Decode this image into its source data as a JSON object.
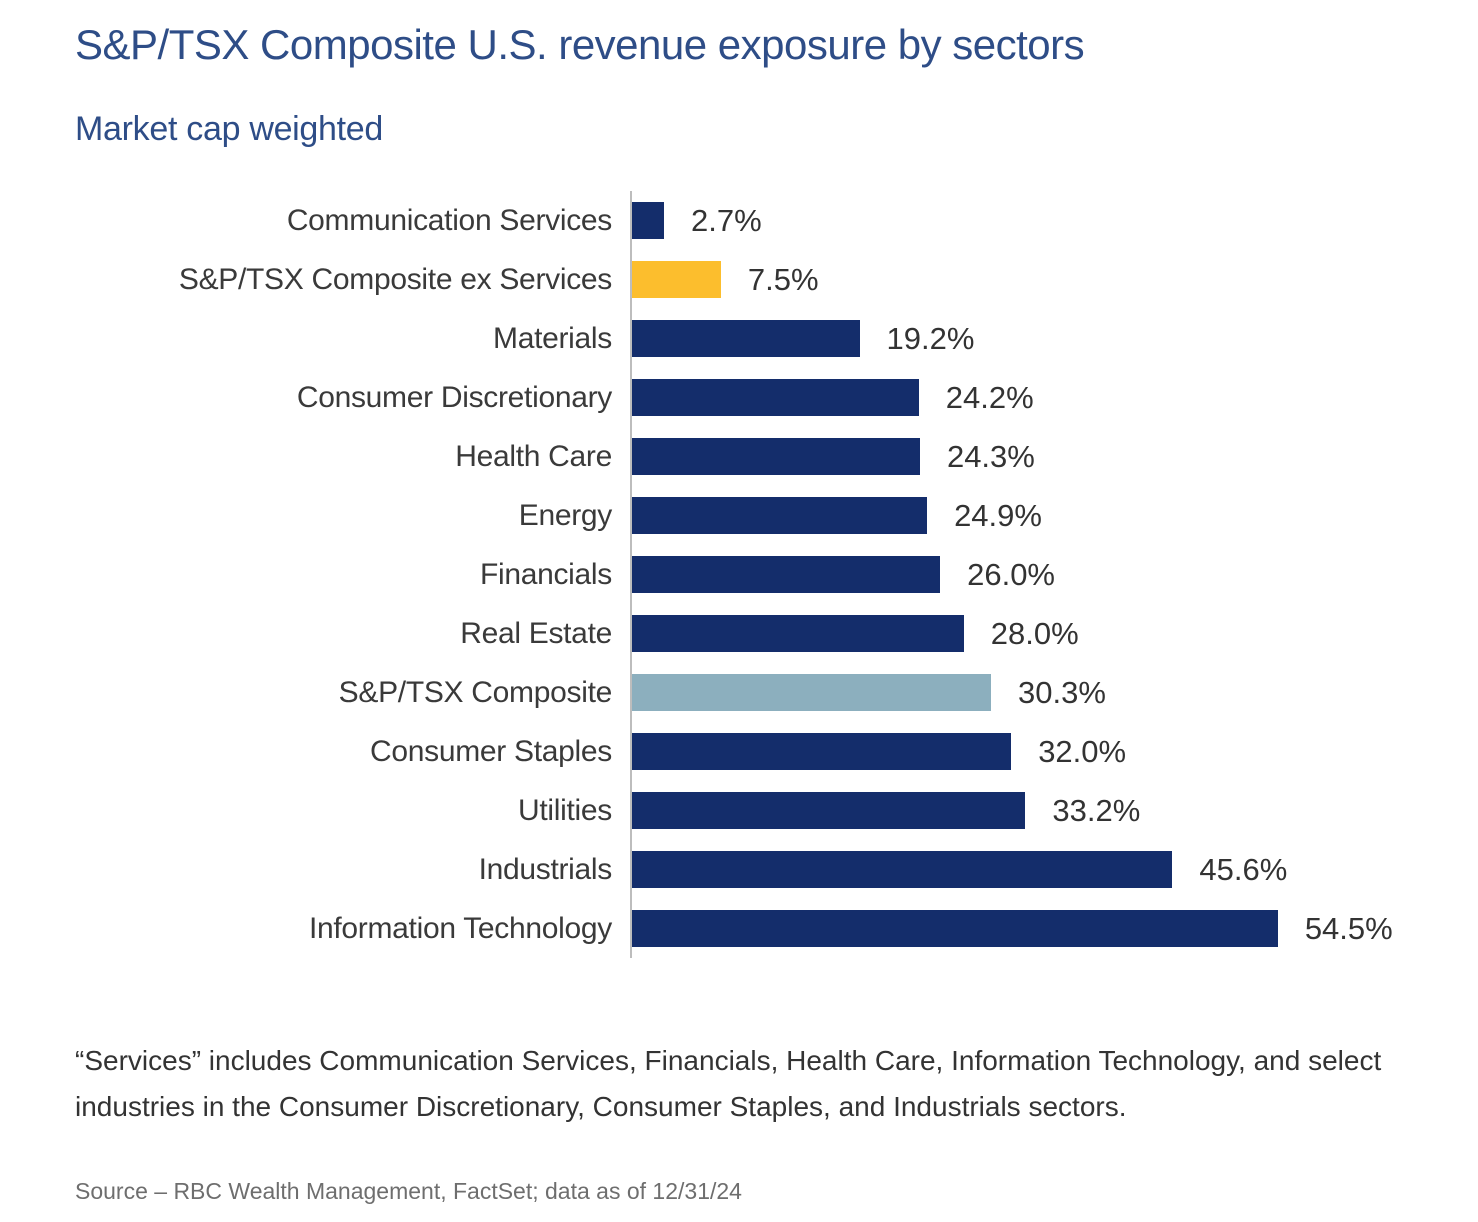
{
  "header": {
    "title": "S&P/TSX Composite U.S. revenue exposure by sectors",
    "subtitle": "Market cap weighted"
  },
  "chart_data": {
    "type": "bar",
    "orientation": "horizontal",
    "title": "S&P/TSX Composite U.S. revenue exposure by sectors",
    "subtitle": "Market cap weighted",
    "categories": [
      "Communication Services",
      "S&P/TSX Composite ex Services",
      "Materials",
      "Consumer Discretionary",
      "Health Care",
      "Energy",
      "Financials",
      "Real Estate",
      "S&P/TSX Composite",
      "Consumer Staples",
      "Utilities",
      "Industrials",
      "Information Technology"
    ],
    "values": [
      2.7,
      7.5,
      19.2,
      24.2,
      24.3,
      24.9,
      26.0,
      28.0,
      30.3,
      32.0,
      33.2,
      45.6,
      54.5
    ],
    "value_labels": [
      "2.7%",
      "7.5%",
      "19.2%",
      "24.2%",
      "24.3%",
      "24.9%",
      "26.0%",
      "28.0%",
      "30.3%",
      "32.0%",
      "33.2%",
      "45.6%",
      "54.5%"
    ],
    "bar_colors": [
      "#142D6B",
      "#FCBE2D",
      "#142D6B",
      "#142D6B",
      "#142D6B",
      "#142D6B",
      "#142D6B",
      "#142D6B",
      "#8CAFBE",
      "#142D6B",
      "#142D6B",
      "#142D6B",
      "#142D6B"
    ],
    "xlim": [
      0,
      60
    ],
    "grid": false,
    "legend": "none",
    "value_label_position": "right-of-bar"
  },
  "palette": {
    "navy": "#142D6B",
    "gold": "#FCBE2D",
    "light_blue": "#8CAFBE",
    "title_blue": "#2E4D87",
    "category_text": "#3A3A3A",
    "value_text": "#333333",
    "axis_line": "#BDBDBD",
    "source_text": "#6E6E6E"
  },
  "footnote": "“Services” includes Communication Services, Financials, Health Care, Information Technology, and select industries in the Consumer Discretionary, Consumer Staples, and Industrials sectors.",
  "source": "Source – RBC Wealth Management, FactSet; data as of 12/31/24"
}
